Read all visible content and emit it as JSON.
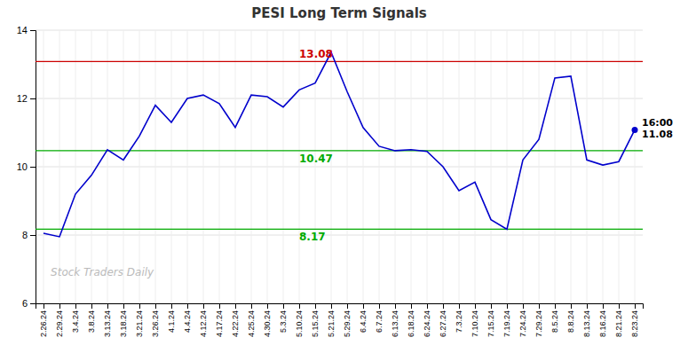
{
  "chart_data": {
    "type": "line",
    "title": "PESI Long Term Signals",
    "watermark": "Stock Traders Daily",
    "annotation": "16:00",
    "color": "#0000cc",
    "grid": true,
    "categories": [
      "2.26.24",
      "2.29.24",
      "3.4.24",
      "3.8.24",
      "3.13.24",
      "3.18.24",
      "3.21.24",
      "3.26.24",
      "4.1.24",
      "4.4.24",
      "4.12.24",
      "4.17.24",
      "4.22.24",
      "4.25.24",
      "4.30.24",
      "5.3.24",
      "5.10.24",
      "5.15.24",
      "5.21.24",
      "5.29.24",
      "6.4.24",
      "6.7.24",
      "6.13.24",
      "6.18.24",
      "6.24.24",
      "6.27.24",
      "7.3.24",
      "7.10.24",
      "7.15.24",
      "7.19.24",
      "7.24.24",
      "7.29.24",
      "8.5.24",
      "8.8.24",
      "8.13.24",
      "8.16.24",
      "8.21.24",
      "8.23.24"
    ],
    "values": [
      8.05,
      7.95,
      9.2,
      9.75,
      10.5,
      10.2,
      10.9,
      11.8,
      11.3,
      12.0,
      12.1,
      11.85,
      11.15,
      12.1,
      12.05,
      11.75,
      12.25,
      12.45,
      13.35,
      12.2,
      11.15,
      10.6,
      10.47,
      10.5,
      10.45,
      10.0,
      9.3,
      9.55,
      8.45,
      8.17,
      10.2,
      10.8,
      12.6,
      12.65,
      10.2,
      10.05,
      10.15,
      11.08
    ],
    "reference_lines": [
      {
        "value": 13.08,
        "color": "#cc0000"
      },
      {
        "value": 10.47,
        "color": "#00aa00"
      },
      {
        "value": 8.17,
        "color": "#00aa00"
      }
    ],
    "ylim": [
      6,
      14
    ],
    "yticks": [
      6,
      8,
      10,
      12,
      14
    ]
  }
}
